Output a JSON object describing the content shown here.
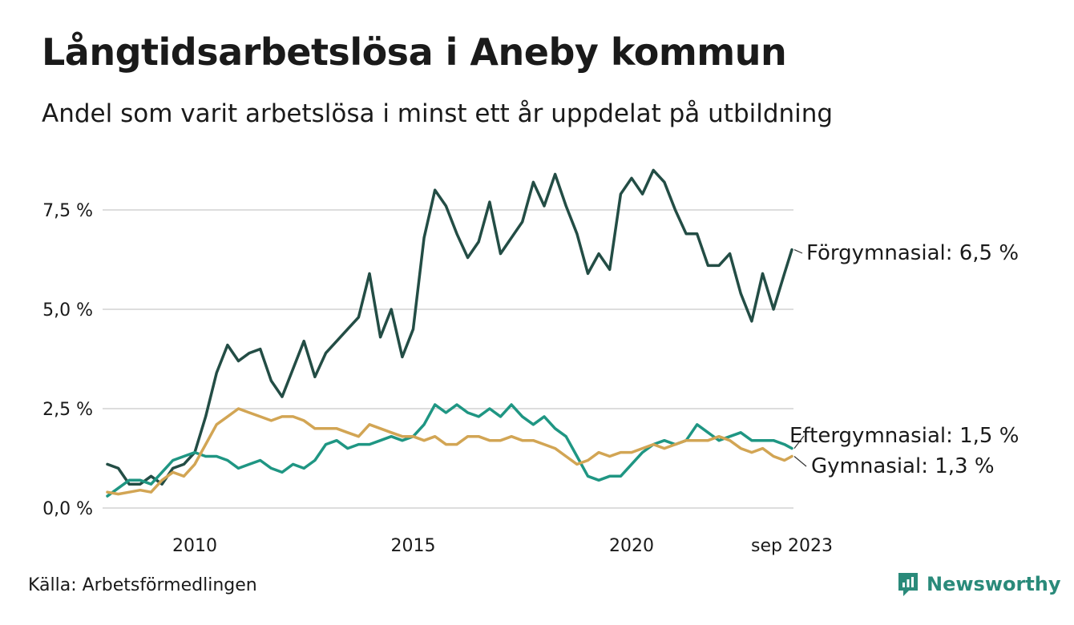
{
  "header": {
    "title": "Långtidsarbetslösa i Aneby kommun",
    "subtitle": "Andel som varit arbetslösa i minst ett år uppdelat på utbildning"
  },
  "footer": {
    "source": "Källa: Arbetsförmedlingen",
    "brand": "Newsworthy"
  },
  "colors": {
    "forgymnasial": "#234d45",
    "eftergymnasial": "#1f9683",
    "gymnasial": "#d2a554",
    "grid": "#dddddd",
    "text": "#1a1a1a"
  },
  "chart_data": {
    "type": "line",
    "title": "Långtidsarbetslösa i Aneby kommun",
    "xlabel": "",
    "ylabel": "",
    "x_range": [
      2008.0,
      2023.67
    ],
    "ylim": [
      0,
      8.8
    ],
    "y_ticks": [
      0,
      2.5,
      5.0,
      7.5
    ],
    "y_tick_labels": [
      "0,0 %",
      "2,5 %",
      "5,0 %",
      "7,5 %"
    ],
    "x_ticks": [
      2010,
      2015,
      2020,
      2023.67
    ],
    "x_tick_labels": [
      "2010",
      "2015",
      "2020",
      "sep 2023"
    ],
    "grid": true,
    "series": [
      {
        "name": "Förgymnasial",
        "label": "Förgymnasial: 6,5 %",
        "color_key": "forgymnasial",
        "points": [
          [
            2008.0,
            1.1
          ],
          [
            2008.25,
            1.0
          ],
          [
            2008.5,
            0.6
          ],
          [
            2008.75,
            0.6
          ],
          [
            2009.0,
            0.8
          ],
          [
            2009.25,
            0.6
          ],
          [
            2009.5,
            1.0
          ],
          [
            2009.75,
            1.1
          ],
          [
            2010.0,
            1.4
          ],
          [
            2010.25,
            2.3
          ],
          [
            2010.5,
            3.4
          ],
          [
            2010.75,
            4.1
          ],
          [
            2011.0,
            3.7
          ],
          [
            2011.25,
            3.9
          ],
          [
            2011.5,
            4.0
          ],
          [
            2011.75,
            3.2
          ],
          [
            2012.0,
            2.8
          ],
          [
            2012.25,
            3.5
          ],
          [
            2012.5,
            4.2
          ],
          [
            2012.75,
            3.3
          ],
          [
            2013.0,
            3.9
          ],
          [
            2013.25,
            4.2
          ],
          [
            2013.5,
            4.5
          ],
          [
            2013.75,
            4.8
          ],
          [
            2014.0,
            5.9
          ],
          [
            2014.25,
            4.3
          ],
          [
            2014.5,
            5.0
          ],
          [
            2014.75,
            3.8
          ],
          [
            2015.0,
            4.5
          ],
          [
            2015.25,
            6.8
          ],
          [
            2015.5,
            8.0
          ],
          [
            2015.75,
            7.6
          ],
          [
            2016.0,
            6.9
          ],
          [
            2016.25,
            6.3
          ],
          [
            2016.5,
            6.7
          ],
          [
            2016.75,
            7.7
          ],
          [
            2017.0,
            6.4
          ],
          [
            2017.25,
            6.8
          ],
          [
            2017.5,
            7.2
          ],
          [
            2017.75,
            8.2
          ],
          [
            2018.0,
            7.6
          ],
          [
            2018.25,
            8.4
          ],
          [
            2018.5,
            7.6
          ],
          [
            2018.75,
            6.9
          ],
          [
            2019.0,
            5.9
          ],
          [
            2019.25,
            6.4
          ],
          [
            2019.5,
            6.0
          ],
          [
            2019.75,
            7.9
          ],
          [
            2020.0,
            8.3
          ],
          [
            2020.25,
            7.9
          ],
          [
            2020.5,
            8.5
          ],
          [
            2020.75,
            8.2
          ],
          [
            2021.0,
            7.5
          ],
          [
            2021.25,
            6.9
          ],
          [
            2021.5,
            6.9
          ],
          [
            2021.75,
            6.1
          ],
          [
            2022.0,
            6.1
          ],
          [
            2022.25,
            6.4
          ],
          [
            2022.5,
            5.4
          ],
          [
            2022.75,
            4.7
          ],
          [
            2023.0,
            5.9
          ],
          [
            2023.25,
            5.0
          ],
          [
            2023.5,
            5.9
          ],
          [
            2023.67,
            6.5
          ]
        ]
      },
      {
        "name": "Eftergymnasial",
        "label": "Eftergymnasial: 1,5 %",
        "color_key": "eftergymnasial",
        "points": [
          [
            2008.0,
            0.3
          ],
          [
            2008.25,
            0.5
          ],
          [
            2008.5,
            0.7
          ],
          [
            2008.75,
            0.7
          ],
          [
            2009.0,
            0.6
          ],
          [
            2009.25,
            0.9
          ],
          [
            2009.5,
            1.2
          ],
          [
            2009.75,
            1.3
          ],
          [
            2010.0,
            1.4
          ],
          [
            2010.25,
            1.3
          ],
          [
            2010.5,
            1.3
          ],
          [
            2010.75,
            1.2
          ],
          [
            2011.0,
            1.0
          ],
          [
            2011.25,
            1.1
          ],
          [
            2011.5,
            1.2
          ],
          [
            2011.75,
            1.0
          ],
          [
            2012.0,
            0.9
          ],
          [
            2012.25,
            1.1
          ],
          [
            2012.5,
            1.0
          ],
          [
            2012.75,
            1.2
          ],
          [
            2013.0,
            1.6
          ],
          [
            2013.25,
            1.7
          ],
          [
            2013.5,
            1.5
          ],
          [
            2013.75,
            1.6
          ],
          [
            2014.0,
            1.6
          ],
          [
            2014.25,
            1.7
          ],
          [
            2014.5,
            1.8
          ],
          [
            2014.75,
            1.7
          ],
          [
            2015.0,
            1.8
          ],
          [
            2015.25,
            2.1
          ],
          [
            2015.5,
            2.6
          ],
          [
            2015.75,
            2.4
          ],
          [
            2016.0,
            2.6
          ],
          [
            2016.25,
            2.4
          ],
          [
            2016.5,
            2.3
          ],
          [
            2016.75,
            2.5
          ],
          [
            2017.0,
            2.3
          ],
          [
            2017.25,
            2.6
          ],
          [
            2017.5,
            2.3
          ],
          [
            2017.75,
            2.1
          ],
          [
            2018.0,
            2.3
          ],
          [
            2018.25,
            2.0
          ],
          [
            2018.5,
            1.8
          ],
          [
            2018.75,
            1.3
          ],
          [
            2019.0,
            0.8
          ],
          [
            2019.25,
            0.7
          ],
          [
            2019.5,
            0.8
          ],
          [
            2019.75,
            0.8
          ],
          [
            2020.0,
            1.1
          ],
          [
            2020.25,
            1.4
          ],
          [
            2020.5,
            1.6
          ],
          [
            2020.75,
            1.7
          ],
          [
            2021.0,
            1.6
          ],
          [
            2021.25,
            1.7
          ],
          [
            2021.5,
            2.1
          ],
          [
            2021.75,
            1.9
          ],
          [
            2022.0,
            1.7
          ],
          [
            2022.25,
            1.8
          ],
          [
            2022.5,
            1.9
          ],
          [
            2022.75,
            1.7
          ],
          [
            2023.0,
            1.7
          ],
          [
            2023.25,
            1.7
          ],
          [
            2023.5,
            1.6
          ],
          [
            2023.67,
            1.5
          ]
        ]
      },
      {
        "name": "Gymnasial",
        "label": "Gymnasial: 1,3 %",
        "color_key": "gymnasial",
        "points": [
          [
            2008.0,
            0.4
          ],
          [
            2008.25,
            0.35
          ],
          [
            2008.5,
            0.4
          ],
          [
            2008.75,
            0.45
          ],
          [
            2009.0,
            0.4
          ],
          [
            2009.25,
            0.7
          ],
          [
            2009.5,
            0.9
          ],
          [
            2009.75,
            0.8
          ],
          [
            2010.0,
            1.1
          ],
          [
            2010.25,
            1.6
          ],
          [
            2010.5,
            2.1
          ],
          [
            2010.75,
            2.3
          ],
          [
            2011.0,
            2.5
          ],
          [
            2011.25,
            2.4
          ],
          [
            2011.5,
            2.3
          ],
          [
            2011.75,
            2.2
          ],
          [
            2012.0,
            2.3
          ],
          [
            2012.25,
            2.3
          ],
          [
            2012.5,
            2.2
          ],
          [
            2012.75,
            2.0
          ],
          [
            2013.0,
            2.0
          ],
          [
            2013.25,
            2.0
          ],
          [
            2013.5,
            1.9
          ],
          [
            2013.75,
            1.8
          ],
          [
            2014.0,
            2.1
          ],
          [
            2014.25,
            2.0
          ],
          [
            2014.5,
            1.9
          ],
          [
            2014.75,
            1.8
          ],
          [
            2015.0,
            1.8
          ],
          [
            2015.25,
            1.7
          ],
          [
            2015.5,
            1.8
          ],
          [
            2015.75,
            1.6
          ],
          [
            2016.0,
            1.6
          ],
          [
            2016.25,
            1.8
          ],
          [
            2016.5,
            1.8
          ],
          [
            2016.75,
            1.7
          ],
          [
            2017.0,
            1.7
          ],
          [
            2017.25,
            1.8
          ],
          [
            2017.5,
            1.7
          ],
          [
            2017.75,
            1.7
          ],
          [
            2018.0,
            1.6
          ],
          [
            2018.25,
            1.5
          ],
          [
            2018.5,
            1.3
          ],
          [
            2018.75,
            1.1
          ],
          [
            2019.0,
            1.2
          ],
          [
            2019.25,
            1.4
          ],
          [
            2019.5,
            1.3
          ],
          [
            2019.75,
            1.4
          ],
          [
            2020.0,
            1.4
          ],
          [
            2020.25,
            1.5
          ],
          [
            2020.5,
            1.6
          ],
          [
            2020.75,
            1.5
          ],
          [
            2021.0,
            1.6
          ],
          [
            2021.25,
            1.7
          ],
          [
            2021.5,
            1.7
          ],
          [
            2021.75,
            1.7
          ],
          [
            2022.0,
            1.8
          ],
          [
            2022.25,
            1.7
          ],
          [
            2022.5,
            1.5
          ],
          [
            2022.75,
            1.4
          ],
          [
            2023.0,
            1.5
          ],
          [
            2023.25,
            1.3
          ],
          [
            2023.5,
            1.2
          ],
          [
            2023.67,
            1.3
          ]
        ]
      }
    ]
  }
}
